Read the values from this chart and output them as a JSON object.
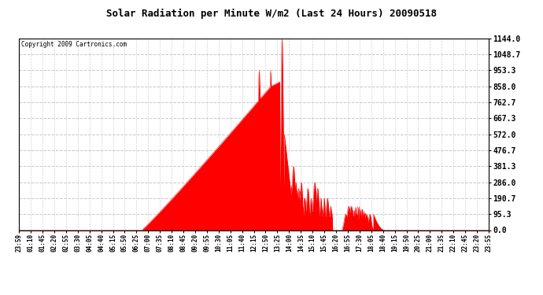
{
  "title": "Solar Radiation per Minute W/m2 (Last 24 Hours) 20090518",
  "copyright": "Copyright 2009 Cartronics.com",
  "y_ticks": [
    0.0,
    95.3,
    190.7,
    286.0,
    381.3,
    476.7,
    572.0,
    667.3,
    762.7,
    858.0,
    953.3,
    1048.7,
    1144.0
  ],
  "y_max": 1144.0,
  "y_min": 0.0,
  "fill_color": "#FF0000",
  "line_color": "#FF0000",
  "bg_color": "#FFFFFF",
  "grid_color": "#C8C8C8",
  "dashed_line_color": "#FF0000",
  "x_labels": [
    "23:59",
    "01:10",
    "01:45",
    "02:20",
    "02:55",
    "03:30",
    "04:05",
    "04:40",
    "05:15",
    "05:50",
    "06:25",
    "07:00",
    "07:35",
    "08:10",
    "08:45",
    "09:20",
    "09:55",
    "10:30",
    "11:05",
    "11:40",
    "12:15",
    "12:50",
    "13:25",
    "14:00",
    "14:35",
    "15:10",
    "15:45",
    "16:20",
    "16:55",
    "17:30",
    "18:05",
    "18:40",
    "19:15",
    "19:50",
    "20:25",
    "21:00",
    "21:35",
    "22:10",
    "22:45",
    "23:20",
    "23:55"
  ],
  "n_points": 1440
}
